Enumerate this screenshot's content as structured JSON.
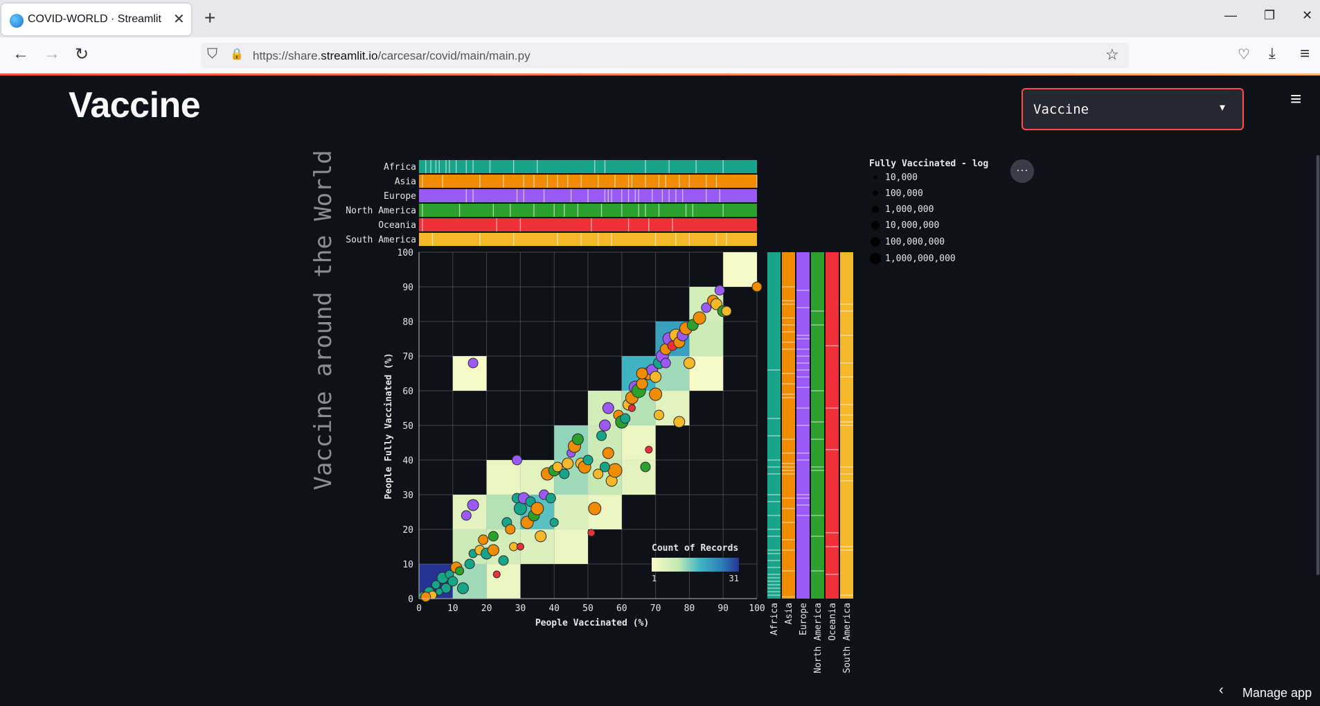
{
  "browser": {
    "tab_title": "COVID-WORLD · Streamlit",
    "url_prefix": "https://share.",
    "url_host": "streamlit.io",
    "url_path": "/carcesar/covid/main/main.py",
    "close_glyph": "✕",
    "newtab_glyph": "+",
    "back_glyph": "←",
    "forward_glyph": "→",
    "reload_glyph": "↻",
    "min_glyph": "—",
    "restore_glyph": "❐",
    "winclose_glyph": "✕",
    "shield_glyph": "⛉",
    "lock_glyph": "🔒",
    "star_glyph": "☆",
    "pocket_glyph": "♡",
    "download_glyph": "⤓",
    "menu_glyph": "≡"
  },
  "app": {
    "title": "Vaccine",
    "select_value": "Vaccine",
    "caret": "▾",
    "hamburger": "≡",
    "chart_menu": "···",
    "manage_label": "Manage app",
    "manage_chevron": "‹"
  },
  "colors": {
    "Africa": "#17a589",
    "Asia": "#f08c00",
    "Europe": "#9b59f7",
    "North America": "#2ca02c",
    "Oceania": "#f03038",
    "South America": "#f5b82a"
  },
  "chart_data": {
    "type": "scatter",
    "title": "Vaccine around the World",
    "xlabel": "People Vaccinated (%)",
    "ylabel": "People Fully Vaccinated (%)",
    "xlim": [
      0,
      100
    ],
    "ylim": [
      0,
      100
    ],
    "ticks": [
      0,
      10,
      20,
      30,
      40,
      50,
      60,
      70,
      80,
      90,
      100
    ],
    "continents": [
      "Africa",
      "Asia",
      "Europe",
      "North America",
      "Oceania",
      "South America"
    ],
    "size_legend": {
      "title": "Fully Vaccinated - log",
      "entries": [
        "10,000",
        "100,000",
        "1,000,000",
        "10,000,000",
        "100,000,000",
        "1,000,000,000"
      ]
    },
    "color_legend": {
      "title": "Count of Records",
      "min": "1",
      "max": "31"
    },
    "heatmap": [
      {
        "x": 0,
        "y": 0,
        "count": 31
      },
      {
        "x": 10,
        "y": 0,
        "count": 9
      },
      {
        "x": 20,
        "y": 0,
        "count": 2
      },
      {
        "x": 10,
        "y": 10,
        "count": 6
      },
      {
        "x": 20,
        "y": 10,
        "count": 5
      },
      {
        "x": 30,
        "y": 10,
        "count": 4
      },
      {
        "x": 40,
        "y": 10,
        "count": 2
      },
      {
        "x": 10,
        "y": 20,
        "count": 3
      },
      {
        "x": 20,
        "y": 20,
        "count": 8
      },
      {
        "x": 30,
        "y": 20,
        "count": 13
      },
      {
        "x": 40,
        "y": 20,
        "count": 4
      },
      {
        "x": 50,
        "y": 20,
        "count": 2
      },
      {
        "x": 20,
        "y": 30,
        "count": 2
      },
      {
        "x": 30,
        "y": 30,
        "count": 3
      },
      {
        "x": 40,
        "y": 30,
        "count": 9
      },
      {
        "x": 50,
        "y": 30,
        "count": 7
      },
      {
        "x": 60,
        "y": 30,
        "count": 3
      },
      {
        "x": 40,
        "y": 40,
        "count": 10
      },
      {
        "x": 50,
        "y": 40,
        "count": 6
      },
      {
        "x": 60,
        "y": 40,
        "count": 2
      },
      {
        "x": 50,
        "y": 50,
        "count": 5
      },
      {
        "x": 60,
        "y": 50,
        "count": 8
      },
      {
        "x": 70,
        "y": 50,
        "count": 3
      },
      {
        "x": 10,
        "y": 60,
        "count": 1
      },
      {
        "x": 60,
        "y": 60,
        "count": 15
      },
      {
        "x": 70,
        "y": 60,
        "count": 9
      },
      {
        "x": 80,
        "y": 60,
        "count": 1
      },
      {
        "x": 70,
        "y": 70,
        "count": 18
      },
      {
        "x": 80,
        "y": 70,
        "count": 6
      },
      {
        "x": 80,
        "y": 80,
        "count": 5
      },
      {
        "x": 90,
        "y": 90,
        "count": 1
      }
    ],
    "points": [
      {
        "x": 1,
        "y": 1,
        "c": "Africa",
        "s": 5
      },
      {
        "x": 3,
        "y": 2,
        "c": "Africa",
        "s": 7
      },
      {
        "x": 5,
        "y": 4,
        "c": "Africa",
        "s": 6
      },
      {
        "x": 7,
        "y": 6,
        "c": "Africa",
        "s": 8
      },
      {
        "x": 8,
        "y": 3,
        "c": "Africa",
        "s": 7
      },
      {
        "x": 9,
        "y": 7,
        "c": "Africa",
        "s": 6
      },
      {
        "x": 6,
        "y": 2,
        "c": "Africa",
        "s": 5
      },
      {
        "x": 10,
        "y": 5,
        "c": "Africa",
        "s": 7
      },
      {
        "x": 4,
        "y": 1,
        "c": "South America",
        "s": 6
      },
      {
        "x": 2,
        "y": 0.5,
        "c": "Asia",
        "s": 7
      },
      {
        "x": 11,
        "y": 9,
        "c": "Asia",
        "s": 8
      },
      {
        "x": 13,
        "y": 3,
        "c": "Africa",
        "s": 8
      },
      {
        "x": 12,
        "y": 8,
        "c": "North America",
        "s": 6
      },
      {
        "x": 15,
        "y": 10,
        "c": "Africa",
        "s": 7
      },
      {
        "x": 16,
        "y": 13,
        "c": "Africa",
        "s": 6
      },
      {
        "x": 18,
        "y": 14,
        "c": "South America",
        "s": 7
      },
      {
        "x": 20,
        "y": 13,
        "c": "Africa",
        "s": 8
      },
      {
        "x": 19,
        "y": 17,
        "c": "Asia",
        "s": 7
      },
      {
        "x": 22,
        "y": 18,
        "c": "North America",
        "s": 7
      },
      {
        "x": 23,
        "y": 7,
        "c": "Oceania",
        "s": 5
      },
      {
        "x": 25,
        "y": 11,
        "c": "Africa",
        "s": 7
      },
      {
        "x": 26,
        "y": 22,
        "c": "Africa",
        "s": 7
      },
      {
        "x": 27,
        "y": 20,
        "c": "Asia",
        "s": 7
      },
      {
        "x": 28,
        "y": 15,
        "c": "South America",
        "s": 6
      },
      {
        "x": 14,
        "y": 24,
        "c": "Europe",
        "s": 7
      },
      {
        "x": 16,
        "y": 27,
        "c": "Europe",
        "s": 8
      },
      {
        "x": 22,
        "y": 14,
        "c": "Asia",
        "s": 8
      },
      {
        "x": 29,
        "y": 29,
        "c": "Africa",
        "s": 7
      },
      {
        "x": 30,
        "y": 26,
        "c": "Africa",
        "s": 9
      },
      {
        "x": 31,
        "y": 29,
        "c": "Europe",
        "s": 8
      },
      {
        "x": 32,
        "y": 22,
        "c": "Asia",
        "s": 9
      },
      {
        "x": 33,
        "y": 28,
        "c": "Africa",
        "s": 7
      },
      {
        "x": 34,
        "y": 24,
        "c": "North America",
        "s": 8
      },
      {
        "x": 35,
        "y": 26,
        "c": "Asia",
        "s": 9
      },
      {
        "x": 36,
        "y": 18,
        "c": "South America",
        "s": 8
      },
      {
        "x": 37,
        "y": 30,
        "c": "Europe",
        "s": 7
      },
      {
        "x": 30,
        "y": 15,
        "c": "Oceania",
        "s": 5
      },
      {
        "x": 29,
        "y": 40,
        "c": "Europe",
        "s": 7
      },
      {
        "x": 38,
        "y": 36,
        "c": "Asia",
        "s": 9
      },
      {
        "x": 40,
        "y": 37,
        "c": "North America",
        "s": 8
      },
      {
        "x": 41,
        "y": 38,
        "c": "South America",
        "s": 7
      },
      {
        "x": 43,
        "y": 36,
        "c": "Africa",
        "s": 7
      },
      {
        "x": 39,
        "y": 29,
        "c": "Africa",
        "s": 7
      },
      {
        "x": 40,
        "y": 22,
        "c": "Africa",
        "s": 6
      },
      {
        "x": 44,
        "y": 39,
        "c": "South America",
        "s": 8
      },
      {
        "x": 45,
        "y": 42,
        "c": "Europe",
        "s": 6
      },
      {
        "x": 46,
        "y": 44,
        "c": "Asia",
        "s": 9
      },
      {
        "x": 47,
        "y": 46,
        "c": "North America",
        "s": 8
      },
      {
        "x": 48,
        "y": 39,
        "c": "South America",
        "s": 8
      },
      {
        "x": 49,
        "y": 38,
        "c": "Asia",
        "s": 9
      },
      {
        "x": 50,
        "y": 40,
        "c": "Africa",
        "s": 7
      },
      {
        "x": 51,
        "y": 19,
        "c": "Oceania",
        "s": 5
      },
      {
        "x": 52,
        "y": 26,
        "c": "Asia",
        "s": 9
      },
      {
        "x": 53,
        "y": 36,
        "c": "South America",
        "s": 7
      },
      {
        "x": 54,
        "y": 47,
        "c": "Africa",
        "s": 7
      },
      {
        "x": 55,
        "y": 50,
        "c": "Europe",
        "s": 8
      },
      {
        "x": 56,
        "y": 42,
        "c": "Asia",
        "s": 8
      },
      {
        "x": 57,
        "y": 34,
        "c": "South America",
        "s": 8
      },
      {
        "x": 58,
        "y": 37,
        "c": "Asia",
        "s": 10
      },
      {
        "x": 55,
        "y": 38,
        "c": "Africa",
        "s": 7
      },
      {
        "x": 56,
        "y": 55,
        "c": "Europe",
        "s": 8
      },
      {
        "x": 59,
        "y": 53,
        "c": "Asia",
        "s": 7
      },
      {
        "x": 60,
        "y": 51,
        "c": "North America",
        "s": 9
      },
      {
        "x": 61,
        "y": 52,
        "c": "Africa",
        "s": 7
      },
      {
        "x": 62,
        "y": 56,
        "c": "South America",
        "s": 8
      },
      {
        "x": 63,
        "y": 58,
        "c": "Asia",
        "s": 9
      },
      {
        "x": 64,
        "y": 61,
        "c": "Europe",
        "s": 9
      },
      {
        "x": 65,
        "y": 60,
        "c": "North America",
        "s": 10
      },
      {
        "x": 66,
        "y": 62,
        "c": "Asia",
        "s": 8
      },
      {
        "x": 67,
        "y": 38,
        "c": "North America",
        "s": 7
      },
      {
        "x": 68,
        "y": 43,
        "c": "Oceania",
        "s": 5
      },
      {
        "x": 68,
        "y": 65,
        "c": "Asia",
        "s": 9
      },
      {
        "x": 69,
        "y": 66,
        "c": "Europe",
        "s": 8
      },
      {
        "x": 70,
        "y": 64,
        "c": "South America",
        "s": 8
      },
      {
        "x": 71,
        "y": 68,
        "c": "Africa",
        "s": 8
      },
      {
        "x": 72,
        "y": 70,
        "c": "Europe",
        "s": 9
      },
      {
        "x": 73,
        "y": 72,
        "c": "Asia",
        "s": 8
      },
      {
        "x": 74,
        "y": 75,
        "c": "Europe",
        "s": 9
      },
      {
        "x": 75,
        "y": 73,
        "c": "Oceania",
        "s": 7
      },
      {
        "x": 76,
        "y": 76,
        "c": "South America",
        "s": 9
      },
      {
        "x": 77,
        "y": 74,
        "c": "Asia",
        "s": 8
      },
      {
        "x": 78,
        "y": 76,
        "c": "Europe",
        "s": 8
      },
      {
        "x": 71,
        "y": 53,
        "c": "South America",
        "s": 7
      },
      {
        "x": 70,
        "y": 59,
        "c": "Asia",
        "s": 9
      },
      {
        "x": 77,
        "y": 51,
        "c": "South America",
        "s": 8
      },
      {
        "x": 80,
        "y": 68,
        "c": "South America",
        "s": 8
      },
      {
        "x": 79,
        "y": 78,
        "c": "Asia",
        "s": 9
      },
      {
        "x": 81,
        "y": 79,
        "c": "North America",
        "s": 8
      },
      {
        "x": 83,
        "y": 81,
        "c": "Asia",
        "s": 9
      },
      {
        "x": 85,
        "y": 84,
        "c": "Europe",
        "s": 7
      },
      {
        "x": 87,
        "y": 86,
        "c": "Asia",
        "s": 8
      },
      {
        "x": 88,
        "y": 85,
        "c": "South America",
        "s": 8
      },
      {
        "x": 89,
        "y": 89,
        "c": "Europe",
        "s": 7
      },
      {
        "x": 90,
        "y": 83,
        "c": "North America",
        "s": 8
      },
      {
        "x": 91,
        "y": 83,
        "c": "South America",
        "s": 7
      },
      {
        "x": 100,
        "y": 90,
        "c": "Asia",
        "s": 7
      },
      {
        "x": 16,
        "y": 68,
        "c": "Europe",
        "s": 7
      },
      {
        "x": 63,
        "y": 55,
        "c": "Oceania",
        "s": 5
      },
      {
        "x": 73,
        "y": 68,
        "c": "Europe",
        "s": 7
      },
      {
        "x": 66,
        "y": 65,
        "c": "Asia",
        "s": 8
      }
    ],
    "top_strip_ticks": [
      {
        "c": "Africa",
        "x": [
          2,
          3.5,
          5,
          6,
          8,
          9,
          11,
          14,
          16,
          21,
          28,
          35,
          52,
          55,
          67,
          74,
          82,
          90
        ]
      },
      {
        "c": "Asia",
        "x": [
          1,
          7,
          18,
          25,
          31,
          34,
          38,
          41,
          44,
          48,
          53,
          58,
          62,
          63,
          67,
          71,
          73,
          77,
          80,
          85,
          88,
          100
        ]
      },
      {
        "c": "Europe",
        "x": [
          14,
          16,
          29,
          31,
          37,
          45,
          50,
          55,
          56,
          57,
          60,
          62,
          64,
          65,
          69,
          72,
          74,
          76,
          78,
          85,
          89
        ]
      },
      {
        "c": "North America",
        "x": [
          1,
          12,
          22,
          27,
          34,
          40,
          43,
          47,
          54,
          60,
          65,
          67,
          71,
          79,
          81,
          90
        ]
      },
      {
        "c": "Oceania",
        "x": [
          1,
          23,
          30,
          51,
          62,
          68,
          75
        ]
      },
      {
        "c": "South America",
        "x": [
          4,
          18,
          28,
          41,
          48,
          53,
          57,
          70,
          76,
          80,
          88,
          91
        ]
      }
    ],
    "right_strip_ticks": [
      {
        "c": "Africa",
        "y": [
          1,
          2,
          3,
          4,
          5,
          6,
          7,
          9,
          11,
          13,
          14,
          18,
          20,
          24,
          28,
          30,
          36,
          38,
          40,
          47,
          52,
          66
        ]
      },
      {
        "c": "Asia",
        "y": [
          0.5,
          8,
          14,
          17,
          22,
          26,
          29,
          36,
          37,
          38,
          39,
          42,
          46,
          58,
          59,
          62,
          65,
          72,
          74,
          77,
          79,
          81,
          85,
          86,
          90
        ]
      },
      {
        "c": "Europe",
        "y": [
          24,
          27,
          29,
          30,
          40,
          42,
          50,
          55,
          61,
          64,
          66,
          68,
          70,
          72,
          75,
          76,
          84,
          89
        ]
      },
      {
        "c": "North America",
        "y": [
          8,
          18,
          24,
          37,
          38,
          46,
          51,
          60,
          79,
          83
        ]
      },
      {
        "c": "Oceania",
        "y": [
          7,
          15,
          19,
          43,
          55,
          73
        ]
      },
      {
        "c": "South America",
        "y": [
          1,
          14,
          15,
          34,
          36,
          38,
          50,
          51,
          53,
          56,
          64,
          68,
          76,
          83,
          85
        ]
      }
    ]
  }
}
